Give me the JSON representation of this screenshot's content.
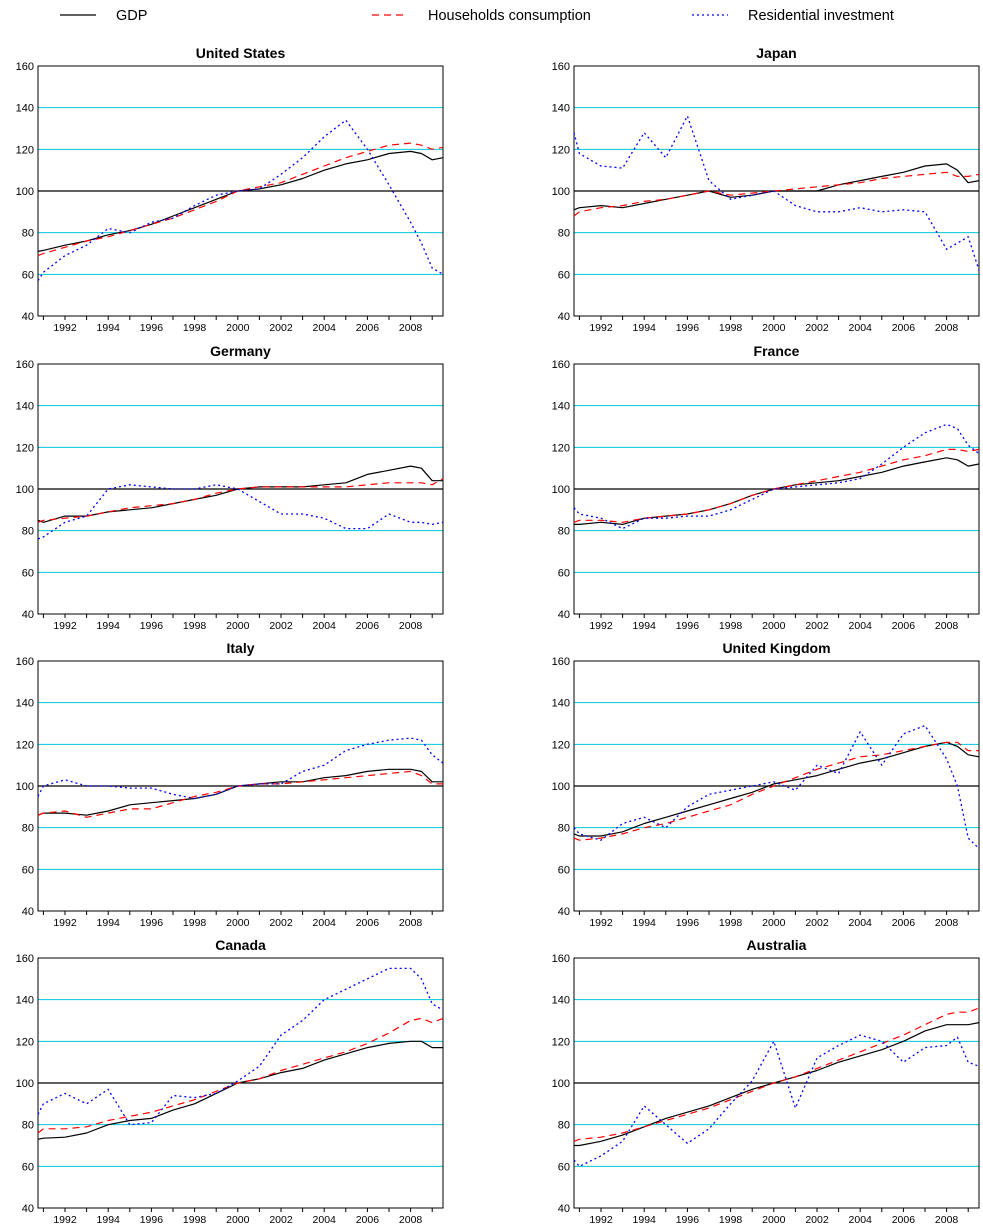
{
  "legend": [
    {
      "label": "GDP",
      "color": "#000000",
      "dash": "solid"
    },
    {
      "label": "Households consumption",
      "color": "#ff0000",
      "dash": "dashed"
    },
    {
      "label": "Residential investment",
      "color": "#0000ff",
      "dash": "dotted"
    }
  ],
  "colors": {
    "gridline": "#00c8d8",
    "baseline": "#000000",
    "frame": "#000000"
  },
  "chart_data": [
    {
      "type": "line",
      "title": "United States",
      "ylim": [
        40,
        160
      ],
      "yticks": [
        40,
        60,
        80,
        100,
        120,
        140,
        160
      ],
      "xticks": [
        "1992",
        "1994",
        "1996",
        "1998",
        "2000",
        "2002",
        "2004",
        "2006",
        "2008"
      ],
      "xlim": [
        1990.75,
        2009.5
      ],
      "baseline": 100,
      "x": [
        1990.75,
        1991,
        1992,
        1993,
        1994,
        1995,
        1996,
        1997,
        1998,
        1999,
        2000,
        2001,
        2002,
        2003,
        2004,
        2005,
        2006,
        2007,
        2008,
        2008.5,
        2009,
        2009.5
      ],
      "series": [
        {
          "name": "GDP",
          "values": [
            71,
            71.5,
            74,
            76,
            79,
            81,
            84,
            88,
            92,
            96,
            100,
            101,
            103,
            106,
            110,
            113,
            115,
            118,
            119,
            118,
            115,
            116
          ]
        },
        {
          "name": "Households consumption",
          "values": [
            69,
            70,
            73,
            76,
            78,
            81,
            84,
            87,
            91,
            95,
            100,
            102,
            104,
            108,
            112,
            116,
            119,
            122,
            123,
            122,
            120,
            121
          ]
        },
        {
          "name": "Residential investment",
          "values": [
            57,
            61,
            69,
            74,
            82,
            80,
            85,
            87,
            93,
            98,
            100,
            101,
            108,
            116,
            126,
            134,
            120,
            103,
            85,
            75,
            63,
            60
          ]
        }
      ]
    },
    {
      "type": "line",
      "title": "Japan",
      "ylim": [
        40,
        160
      ],
      "yticks": [
        40,
        60,
        80,
        100,
        120,
        140,
        160
      ],
      "xticks": [
        "1992",
        "1994",
        "1996",
        "1998",
        "2000",
        "2002",
        "2004",
        "2006",
        "2008"
      ],
      "xlim": [
        1990.75,
        2009.5
      ],
      "baseline": 100,
      "x": [
        1990.75,
        1991,
        1992,
        1993,
        1994,
        1995,
        1996,
        1997,
        1998,
        1999,
        2000,
        2001,
        2002,
        2003,
        2004,
        2005,
        2006,
        2007,
        2008,
        2008.5,
        2009,
        2009.5
      ],
      "series": [
        {
          "name": "GDP",
          "values": [
            91,
            92,
            93,
            92,
            94,
            96,
            98,
            100,
            97,
            98,
            100,
            100,
            100,
            103,
            105,
            107,
            109,
            112,
            113,
            110,
            104,
            105
          ]
        },
        {
          "name": "Households consumption",
          "values": [
            88,
            90,
            92,
            93,
            95,
            96,
            98,
            100,
            98,
            99,
            100,
            101,
            102,
            103,
            104,
            106,
            107,
            108,
            109,
            107,
            107,
            108
          ]
        },
        {
          "name": "Residential investment",
          "values": [
            128,
            118,
            112,
            111,
            128,
            116,
            136,
            105,
            96,
            98,
            100,
            93,
            90,
            90,
            92,
            90,
            91,
            90,
            72,
            75,
            78,
            62
          ]
        }
      ]
    },
    {
      "type": "line",
      "title": "Germany",
      "ylim": [
        40,
        160
      ],
      "yticks": [
        40,
        60,
        80,
        100,
        120,
        140,
        160
      ],
      "xticks": [
        "1992",
        "1994",
        "1996",
        "1998",
        "2000",
        "2002",
        "2004",
        "2006",
        "2008"
      ],
      "xlim": [
        1990.75,
        2009.5
      ],
      "baseline": 100,
      "x": [
        1990.75,
        1991,
        1992,
        1993,
        1994,
        1995,
        1996,
        1997,
        1998,
        1999,
        2000,
        2001,
        2002,
        2003,
        2004,
        2005,
        2006,
        2007,
        2008,
        2008.5,
        2009,
        2009.5
      ],
      "series": [
        {
          "name": "GDP",
          "values": [
            85,
            84,
            87,
            87,
            89,
            90,
            91,
            93,
            95,
            97,
            100,
            101,
            101,
            101,
            102,
            103,
            107,
            109,
            111,
            110,
            104,
            104
          ]
        },
        {
          "name": "Households consumption",
          "values": [
            84,
            85,
            86,
            87,
            89,
            91,
            92,
            93,
            95,
            98,
            100,
            101,
            101,
            101,
            101,
            101,
            102,
            103,
            103,
            103,
            102,
            105
          ]
        },
        {
          "name": "Residential investment",
          "values": [
            76,
            77,
            84,
            87,
            100,
            102,
            101,
            100,
            100,
            102,
            100,
            94,
            88,
            88,
            86,
            81,
            81,
            88,
            84,
            84,
            83,
            84
          ]
        }
      ]
    },
    {
      "type": "line",
      "title": "France",
      "ylim": [
        40,
        160
      ],
      "yticks": [
        40,
        60,
        80,
        100,
        120,
        140,
        160
      ],
      "xticks": [
        "1992",
        "1994",
        "1996",
        "1998",
        "2000",
        "2002",
        "2004",
        "2006",
        "2008"
      ],
      "xlim": [
        1990.75,
        2009.5
      ],
      "baseline": 100,
      "x": [
        1990.75,
        1991,
        1992,
        1993,
        1994,
        1995,
        1996,
        1997,
        1998,
        1999,
        2000,
        2001,
        2002,
        2003,
        2004,
        2005,
        2006,
        2007,
        2008,
        2008.5,
        2009,
        2009.5
      ],
      "series": [
        {
          "name": "GDP",
          "values": [
            83,
            83,
            84,
            83,
            86,
            87,
            88,
            90,
            93,
            97,
            100,
            102,
            103,
            104,
            106,
            108,
            111,
            113,
            115,
            114,
            111,
            112
          ]
        },
        {
          "name": "Households consumption",
          "values": [
            84,
            85,
            85,
            84,
            86,
            87,
            88,
            90,
            93,
            97,
            100,
            102,
            104,
            106,
            108,
            111,
            114,
            116,
            119,
            119,
            118,
            119
          ]
        },
        {
          "name": "Residential investment",
          "values": [
            91,
            88,
            86,
            81,
            86,
            86,
            87,
            87,
            90,
            95,
            100,
            101,
            102,
            103,
            105,
            112,
            120,
            127,
            131,
            129,
            121,
            117
          ]
        }
      ]
    },
    {
      "type": "line",
      "title": "Italy",
      "ylim": [
        40,
        160
      ],
      "yticks": [
        40,
        60,
        80,
        100,
        120,
        140,
        160
      ],
      "xticks": [
        "1992",
        "1994",
        "1996",
        "1998",
        "2000",
        "2002",
        "2004",
        "2006",
        "2008"
      ],
      "xlim": [
        1990.75,
        2009.5
      ],
      "baseline": 100,
      "x": [
        1990.75,
        1991,
        1992,
        1993,
        1994,
        1995,
        1996,
        1997,
        1998,
        1999,
        2000,
        2001,
        2002,
        2003,
        2004,
        2005,
        2006,
        2007,
        2008,
        2008.5,
        2009,
        2009.5
      ],
      "series": [
        {
          "name": "GDP",
          "values": [
            86,
            87,
            87,
            86,
            88,
            91,
            92,
            93,
            94,
            96,
            100,
            101,
            102,
            102,
            104,
            105,
            107,
            108,
            108,
            107,
            102,
            102
          ]
        },
        {
          "name": "Households consumption",
          "values": [
            86,
            87,
            88,
            85,
            87,
            89,
            89,
            92,
            95,
            97,
            100,
            101,
            101,
            102,
            103,
            104,
            105,
            106,
            107,
            105,
            101,
            101
          ]
        },
        {
          "name": "Residential investment",
          "values": [
            95,
            100,
            103,
            100,
            100,
            99,
            99,
            96,
            94,
            96,
            100,
            101,
            101,
            107,
            110,
            117,
            120,
            122,
            123,
            122,
            115,
            111
          ]
        }
      ]
    },
    {
      "type": "line",
      "title": "United Kingdom",
      "ylim": [
        40,
        160
      ],
      "yticks": [
        40,
        60,
        80,
        100,
        120,
        140,
        160
      ],
      "xticks": [
        "1992",
        "1994",
        "1996",
        "1998",
        "2000",
        "2002",
        "2004",
        "2006",
        "2008"
      ],
      "xlim": [
        1990.75,
        2009.5
      ],
      "baseline": 100,
      "x": [
        1990.75,
        1991,
        1992,
        1993,
        1994,
        1995,
        1996,
        1997,
        1998,
        1999,
        2000,
        2001,
        2002,
        2003,
        2004,
        2005,
        2006,
        2007,
        2008,
        2008.5,
        2009,
        2009.5
      ],
      "series": [
        {
          "name": "GDP",
          "values": [
            77,
            76,
            76,
            78,
            82,
            85,
            88,
            91,
            94,
            97,
            101,
            103,
            105,
            108,
            111,
            113,
            116,
            119,
            121,
            119,
            115,
            114
          ]
        },
        {
          "name": "Households consumption",
          "values": [
            75,
            74,
            75,
            77,
            80,
            82,
            85,
            88,
            91,
            96,
            100,
            104,
            108,
            111,
            114,
            115,
            117,
            119,
            121,
            121,
            117,
            117
          ]
        },
        {
          "name": "Residential investment",
          "values": [
            80,
            77,
            74,
            82,
            85,
            80,
            90,
            96,
            98,
            100,
            102,
            98,
            110,
            106,
            126,
            110,
            125,
            129,
            113,
            100,
            75,
            70
          ]
        }
      ]
    },
    {
      "type": "line",
      "title": "Canada",
      "ylim": [
        40,
        160
      ],
      "yticks": [
        40,
        60,
        80,
        100,
        120,
        140,
        160
      ],
      "xticks": [
        "1992",
        "1994",
        "1996",
        "1998",
        "2000",
        "2002",
        "2004",
        "2006",
        "2008"
      ],
      "xlim": [
        1990.75,
        2009.5
      ],
      "baseline": 100,
      "x": [
        1990.75,
        1991,
        1992,
        1993,
        1994,
        1995,
        1996,
        1997,
        1998,
        1999,
        2000,
        2001,
        2002,
        2003,
        2004,
        2005,
        2006,
        2007,
        2008,
        2008.5,
        2009,
        2009.5
      ],
      "series": [
        {
          "name": "GDP",
          "values": [
            73,
            73.5,
            74,
            76,
            80,
            82,
            83,
            87,
            90,
            95,
            100,
            102,
            105,
            107,
            111,
            114,
            117,
            119,
            120,
            120,
            117,
            117
          ]
        },
        {
          "name": "Households consumption",
          "values": [
            76,
            78,
            78,
            79,
            82,
            84,
            86,
            89,
            92,
            96,
            100,
            102,
            106,
            109,
            112,
            115,
            119,
            124,
            130,
            131,
            129,
            131
          ]
        },
        {
          "name": "Residential investment",
          "values": [
            85,
            90,
            95,
            90,
            97,
            80,
            81,
            94,
            93,
            95,
            101,
            108,
            123,
            130,
            140,
            145,
            150,
            155,
            155,
            150,
            138,
            135
          ]
        }
      ]
    },
    {
      "type": "line",
      "title": "Australia",
      "ylim": [
        40,
        160
      ],
      "yticks": [
        40,
        60,
        80,
        100,
        120,
        140,
        160
      ],
      "xticks": [
        "1992",
        "1994",
        "1996",
        "1998",
        "2000",
        "2002",
        "2004",
        "2006",
        "2008"
      ],
      "xlim": [
        1990.75,
        2009.5
      ],
      "baseline": 100,
      "x": [
        1990.75,
        1991,
        1992,
        1993,
        1994,
        1995,
        1996,
        1997,
        1998,
        1999,
        2000,
        2001,
        2002,
        2003,
        2004,
        2005,
        2006,
        2007,
        2008,
        2008.5,
        2009,
        2009.5
      ],
      "series": [
        {
          "name": "GDP",
          "values": [
            70,
            70,
            72,
            75,
            79,
            83,
            86,
            89,
            93,
            97,
            100,
            103,
            106,
            110,
            113,
            116,
            120,
            125,
            128,
            128,
            128,
            129
          ]
        },
        {
          "name": "Households consumption",
          "values": [
            72,
            73,
            74,
            76,
            79,
            82,
            85,
            88,
            92,
            96,
            100,
            103,
            107,
            111,
            115,
            119,
            123,
            128,
            133,
            134,
            134,
            136
          ]
        },
        {
          "name": "Residential investment",
          "values": [
            63,
            60,
            65,
            72,
            89,
            80,
            71,
            78,
            90,
            101,
            120,
            88,
            112,
            118,
            123,
            120,
            110,
            117,
            118,
            122,
            110,
            108
          ]
        }
      ]
    }
  ]
}
